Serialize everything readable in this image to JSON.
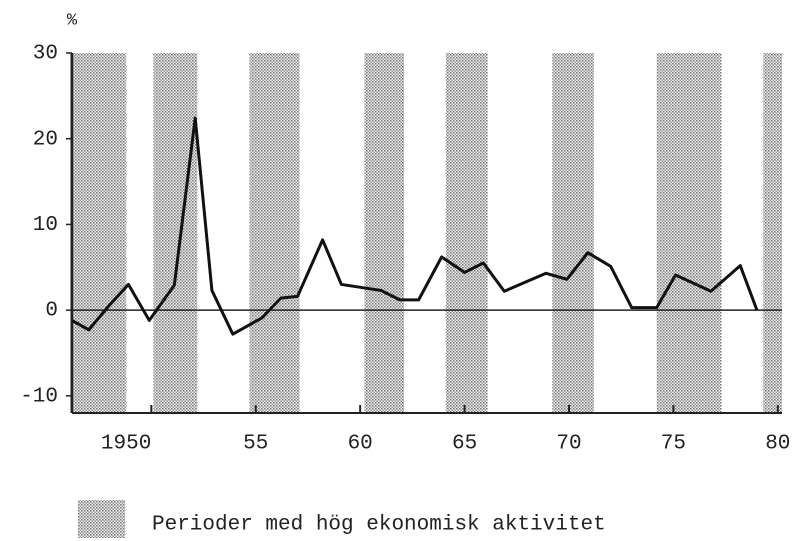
{
  "chart_data": {
    "type": "line",
    "y_unit": "%",
    "shaded_label": "Perioder med hög ekonomisk aktivitet",
    "x": [
      1946.2,
      1947.0,
      1948.0,
      1948.9,
      1949.9,
      1951.1,
      1952.1,
      1952.9,
      1953.9,
      1955.3,
      1956.2,
      1957.0,
      1958.2,
      1959.1,
      1961.0,
      1961.9,
      1962.8,
      1963.9,
      1965.0,
      1965.9,
      1966.9,
      1968.9,
      1969.9,
      1970.9,
      1972.0,
      1973.0,
      1974.2,
      1975.1,
      1976.8,
      1978.2,
      1979.0
    ],
    "values": [
      -1.2,
      -2.3,
      0.6,
      3.0,
      -1.2,
      2.9,
      22.4,
      2.3,
      -2.8,
      -0.9,
      1.4,
      1.6,
      8.2,
      3.0,
      2.3,
      1.2,
      1.2,
      6.2,
      4.4,
      5.5,
      2.2,
      4.3,
      3.6,
      6.7,
      5.1,
      0.3,
      0.3,
      4.1,
      2.2,
      5.2,
      0
    ],
    "color": "#111111",
    "periods": [
      [
        1946.3,
        1948.8
      ],
      [
        1950.1,
        1952.2
      ],
      [
        1954.7,
        1957.1
      ],
      [
        1960.2,
        1962.1
      ],
      [
        1964.1,
        1966.1
      ],
      [
        1969.2,
        1971.2
      ],
      [
        1974.2,
        1977.3
      ],
      [
        1979.3,
        1980.2
      ]
    ],
    "reference_line": 0,
    "xlim": [
      1946.2,
      1980.2
    ],
    "ylim": [
      -12,
      30
    ],
    "xticks": [
      {
        "value": 1950,
        "label": "1950"
      },
      {
        "value": 1955,
        "label": "55"
      },
      {
        "value": 1960,
        "label": "60"
      },
      {
        "value": 1965,
        "label": "65"
      },
      {
        "value": 1970,
        "label": "70"
      },
      {
        "value": 1975,
        "label": "75"
      },
      {
        "value": 1980,
        "label": "80"
      }
    ],
    "yticks": [
      30,
      20,
      10,
      0,
      -10
    ],
    "grid": false
  }
}
